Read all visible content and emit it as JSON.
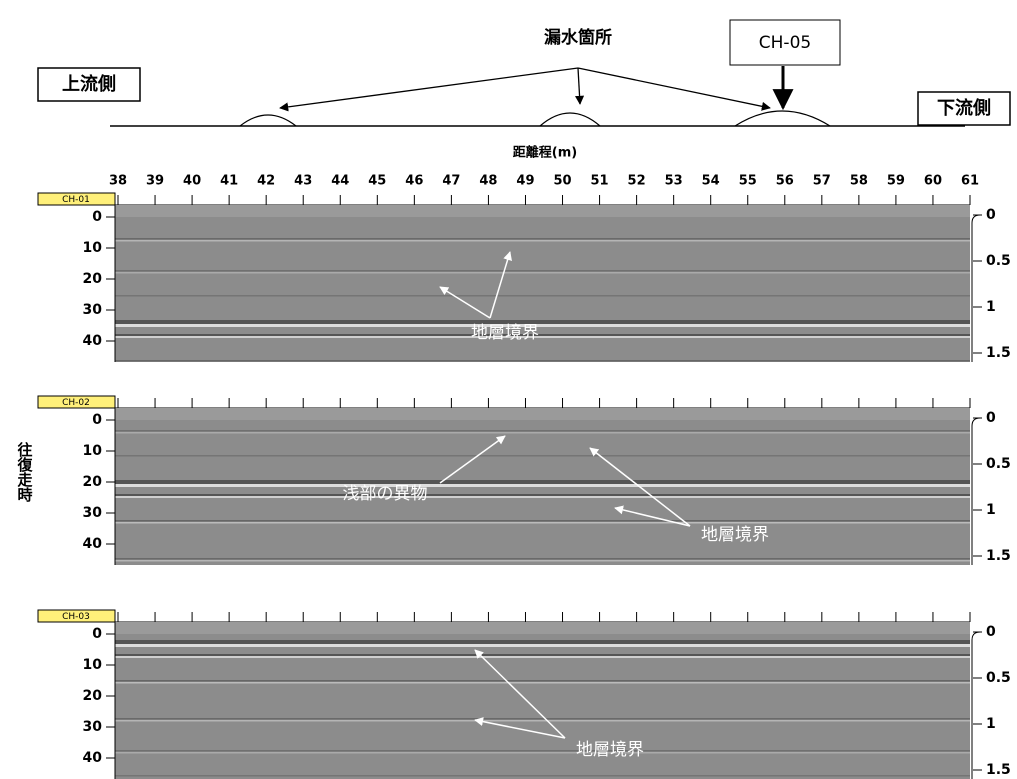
{
  "header": {
    "leak_label": "漏水箇所",
    "channel_box": "CH-05",
    "upstream": "上流側",
    "downstream": "下流側"
  },
  "distance_axis": {
    "title": "距離程(m)",
    "ticks": [
      38,
      39,
      40,
      41,
      42,
      43,
      44,
      45,
      46,
      47,
      48,
      49,
      50,
      51,
      52,
      53,
      54,
      55,
      56,
      57,
      58,
      59,
      60,
      61
    ]
  },
  "time_axis_title": "往復走時",
  "panels": [
    {
      "channel": "CH-01",
      "left_ticks": [
        0,
        10,
        20,
        30,
        40
      ],
      "right_ticks": [
        0,
        0.5,
        1,
        1.5
      ],
      "annotations": [
        {
          "text": "地層境界"
        }
      ]
    },
    {
      "channel": "CH-02",
      "left_ticks": [
        0,
        10,
        20,
        30,
        40
      ],
      "right_ticks": [
        0,
        0.5,
        1,
        1.5
      ],
      "annotations": [
        {
          "text": "浅部の異物"
        },
        {
          "text": "地層境界"
        }
      ]
    },
    {
      "channel": "CH-03",
      "left_ticks": [
        0,
        10,
        20,
        30,
        40
      ],
      "right_ticks": [
        0,
        0.5,
        1,
        1.5
      ],
      "annotations": [
        {
          "text": "地層境界"
        }
      ]
    }
  ]
}
